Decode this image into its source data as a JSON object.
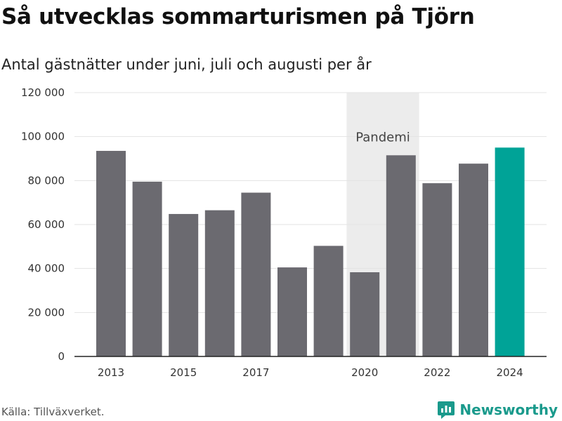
{
  "title": "Så utvecklas sommarturismen på Tjörn",
  "subtitle": "Antal gästnätter under juni, juli och augusti per år",
  "source": "Källa: Tillväxverket.",
  "brand": "Newsworthy",
  "colors": {
    "bar": "#6b6a70",
    "highlight": "#00a397",
    "band": "#ececec",
    "grid": "#e3e3e3",
    "axis": "#222222",
    "brand": "#1a9a8c"
  },
  "chart_data": {
    "type": "bar",
    "title": "Så utvecklas sommarturismen på Tjörn",
    "subtitle": "Antal gästnätter under juni, juli och augusti per år",
    "categories": [
      "2013",
      "2014",
      "2015",
      "2016",
      "2017",
      "2018",
      "2019",
      "2020",
      "2021",
      "2022",
      "2023",
      "2024"
    ],
    "values": [
      93500,
      79500,
      64800,
      66500,
      74500,
      40500,
      50300,
      38300,
      91500,
      78800,
      87700,
      95000
    ],
    "highlight_category": "2024",
    "x_tick_labels": [
      "2013",
      "2015",
      "2017",
      "2020",
      "2022",
      "2024"
    ],
    "y_ticks": [
      0,
      20000,
      40000,
      60000,
      80000,
      100000,
      120000
    ],
    "y_tick_labels": [
      "0",
      "20 000",
      "40 000",
      "60 000",
      "80 000",
      "100 000",
      "120 000"
    ],
    "ylim": [
      0,
      120000
    ],
    "grid": true,
    "band": {
      "from": "2020",
      "to": "2021",
      "label": "Pandemi"
    }
  }
}
